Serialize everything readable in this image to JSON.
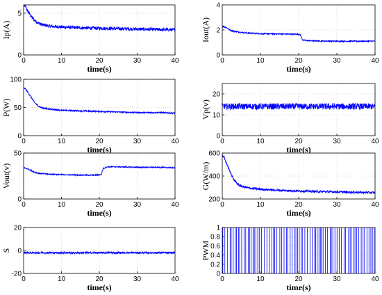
{
  "chart_data": [
    {
      "type": "line",
      "ylabel": "Ip(A)",
      "xlabel": "time(s)",
      "xlim": [
        0,
        40
      ],
      "ylim": [
        0,
        6
      ],
      "xticks": [
        0,
        10,
        20,
        30,
        40
      ],
      "yticks": [
        0,
        5
      ],
      "grid": true,
      "line_color": "#0000ff",
      "series": [
        {
          "x": [
            0,
            0.5,
            1,
            2,
            3,
            4,
            5,
            7,
            10,
            15,
            20,
            25,
            30,
            35,
            40
          ],
          "y": [
            6.0,
            5.8,
            5.3,
            4.6,
            4.1,
            3.8,
            3.6,
            3.45,
            3.35,
            3.25,
            3.2,
            3.15,
            3.1,
            3.05,
            3.0
          ],
          "noise": 0.2
        }
      ]
    },
    {
      "type": "line",
      "ylabel": "Iout(A)",
      "xlabel": "time(s)",
      "xlim": [
        0,
        40
      ],
      "ylim": [
        0,
        4
      ],
      "xticks": [
        0,
        10,
        20,
        30,
        40
      ],
      "yticks": [
        0,
        2,
        4
      ],
      "grid": true,
      "line_color": "#0000ff",
      "series": [
        {
          "x": [
            0,
            1,
            2,
            3,
            4,
            5,
            7,
            10,
            15,
            20,
            20.5,
            21,
            22,
            25,
            30,
            35,
            40
          ],
          "y": [
            2.3,
            2.2,
            2.0,
            1.9,
            1.85,
            1.8,
            1.75,
            1.7,
            1.68,
            1.65,
            1.6,
            1.2,
            1.15,
            1.12,
            1.1,
            1.1,
            1.1
          ],
          "noise": 0.05
        }
      ]
    },
    {
      "type": "line",
      "ylabel": "P(W)",
      "xlabel": "time(s)",
      "xlim": [
        0,
        40
      ],
      "ylim": [
        0,
        100
      ],
      "xticks": [
        0,
        10,
        20,
        30,
        40
      ],
      "yticks": [
        0,
        50,
        100
      ],
      "grid": true,
      "line_color": "#0000ff",
      "series": [
        {
          "x": [
            0,
            0.5,
            1,
            2,
            3,
            4,
            5,
            7,
            10,
            15,
            20,
            25,
            30,
            35,
            40
          ],
          "y": [
            85,
            83,
            78,
            68,
            58,
            52,
            49,
            47,
            45,
            44,
            43,
            42,
            41,
            41,
            40
          ],
          "noise": 1.2
        }
      ]
    },
    {
      "type": "line",
      "ylabel": "Vp(v)",
      "xlabel": "time(s)",
      "xlim": [
        0,
        40
      ],
      "ylim": [
        0,
        25
      ],
      "xticks": [
        0,
        10,
        20,
        30,
        40
      ],
      "yticks": [
        0,
        10,
        20
      ],
      "grid": true,
      "line_color": "#0000ff",
      "series": [
        {
          "x": [
            0,
            40
          ],
          "y": [
            14,
            14
          ],
          "noise": 1.5
        }
      ]
    },
    {
      "type": "line",
      "ylabel": "Vout(v)",
      "xlabel": "time(s)",
      "xlim": [
        0,
        40
      ],
      "ylim": [
        0,
        50
      ],
      "xticks": [
        0,
        10,
        20,
        30,
        40
      ],
      "yticks": [
        0,
        50
      ],
      "grid": true,
      "line_color": "#0000ff",
      "series": [
        {
          "x": [
            0,
            1,
            2,
            3,
            4,
            5,
            7,
            10,
            15,
            19,
            20.5,
            21,
            22,
            25,
            30,
            35,
            40
          ],
          "y": [
            34,
            33,
            31,
            29,
            28,
            27.5,
            27,
            26.5,
            26,
            26,
            26.5,
            33,
            35,
            35,
            34.5,
            34.5,
            34
          ],
          "noise": 0.6
        }
      ]
    },
    {
      "type": "line",
      "ylabel": "G(W/m)",
      "xlabel": "time(s)",
      "xlim": [
        0,
        40
      ],
      "ylim": [
        200,
        600
      ],
      "xticks": [
        0,
        10,
        20,
        30,
        40
      ],
      "yticks": [
        200,
        400,
        600
      ],
      "grid": true,
      "line_color": "#0000ff",
      "series": [
        {
          "x": [
            0,
            0.5,
            1,
            2,
            3,
            4,
            5,
            7,
            10,
            15,
            20,
            25,
            30,
            35,
            40
          ],
          "y": [
            580,
            560,
            520,
            440,
            370,
            330,
            310,
            295,
            285,
            275,
            270,
            265,
            262,
            258,
            255
          ],
          "noise": 10
        }
      ]
    },
    {
      "type": "line",
      "ylabel": "S",
      "xlabel": "time(s)",
      "xlim": [
        0,
        40
      ],
      "ylim": [
        -20,
        20
      ],
      "xticks": [
        0,
        10,
        20,
        30,
        40
      ],
      "yticks": [
        -20,
        0,
        20
      ],
      "grid": true,
      "line_color": "#0000ff",
      "series": [
        {
          "x": [
            0,
            40
          ],
          "y": [
            -2,
            -2
          ],
          "noise": 0.8
        }
      ]
    },
    {
      "type": "line",
      "ylabel": "PWM",
      "xlabel": "time(s)",
      "xlim": [
        0,
        40
      ],
      "ylim": [
        0,
        1
      ],
      "xticks": [
        0,
        10,
        20,
        30,
        40
      ],
      "yticks": [
        0,
        0.2,
        0.4,
        0.6,
        0.8,
        1
      ],
      "grid": true,
      "line_color": "#0000ff",
      "series": [
        {
          "x": [
            0,
            40
          ],
          "y": [
            0,
            1
          ]
        }
      ]
    }
  ]
}
